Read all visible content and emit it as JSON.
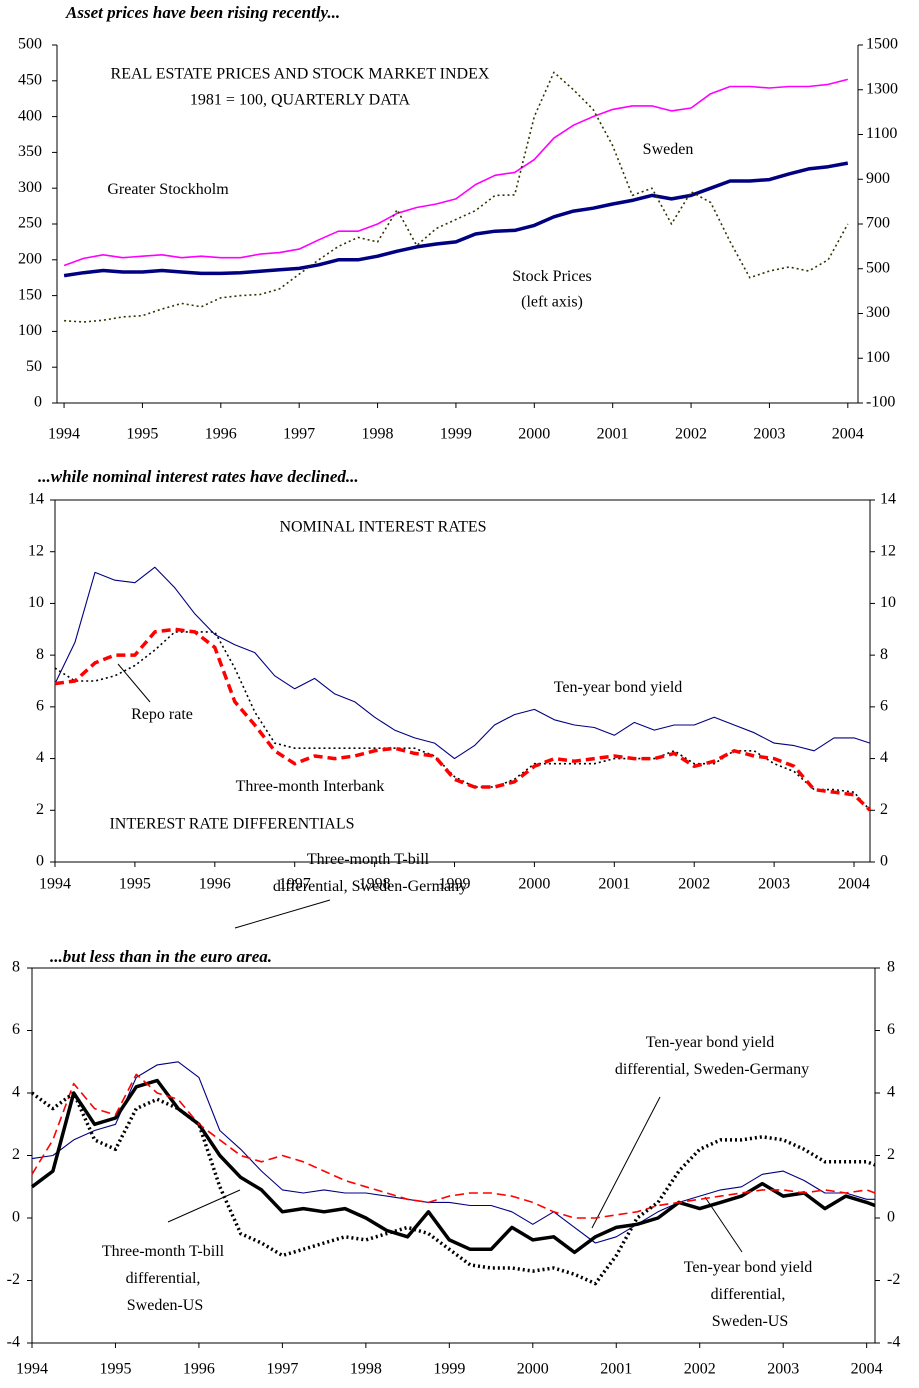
{
  "chart_data": [
    {
      "type": "line",
      "heading": "Asset prices have been rising recently...",
      "title": "REAL ESTATE PRICES AND STOCK MARKET INDEX",
      "subtitle": "1981 = 100, QUARTERLY DATA",
      "annotations": [
        "(left axis)"
      ],
      "x": [
        1994,
        1994.25,
        1994.5,
        1994.75,
        1995,
        1995.25,
        1995.5,
        1995.75,
        1996,
        1996.25,
        1996.5,
        1996.75,
        1997,
        1997.25,
        1997.5,
        1997.75,
        1998,
        1998.25,
        1998.5,
        1998.75,
        1999,
        1999.25,
        1999.5,
        1999.75,
        2000,
        2000.25,
        2000.5,
        2000.75,
        2001,
        2001.25,
        2001.5,
        2001.75,
        2002,
        2002.25,
        2002.5,
        2002.75,
        2003,
        2003.25,
        2003.5,
        2003.75,
        2004
      ],
      "xlim": [
        1993.91,
        2004.13
      ],
      "xticks": [
        1994,
        1995,
        1996,
        1997,
        1998,
        1999,
        2000,
        2001,
        2002,
        2003,
        2004
      ],
      "ylim": [
        0,
        500
      ],
      "yticks": [
        0,
        50,
        100,
        150,
        200,
        250,
        300,
        350,
        400,
        450,
        500
      ],
      "y2lim": [
        -100,
        1500
      ],
      "y2ticks": [
        -100,
        100,
        300,
        500,
        700,
        900,
        1100,
        1300,
        1500
      ],
      "series": [
        {
          "name": "Greater Stockholm",
          "color": "#000080",
          "line_style": "solid",
          "weight": "thick",
          "values": [
            178,
            182,
            185,
            183,
            183,
            185,
            183,
            181,
            181,
            182,
            184,
            186,
            188,
            193,
            200,
            200,
            205,
            212,
            218,
            222,
            225,
            236,
            240,
            241,
            248,
            260,
            268,
            272,
            278,
            283,
            290,
            285,
            290,
            300,
            310,
            310,
            312,
            320,
            327,
            330,
            335
          ]
        },
        {
          "name": "Sweden",
          "color": "#ff00ff",
          "line_style": "solid",
          "weight": "normal",
          "values": [
            192,
            202,
            207,
            203,
            205,
            207,
            203,
            205,
            203,
            203,
            208,
            210,
            215,
            228,
            240,
            240,
            250,
            265,
            273,
            278,
            285,
            305,
            318,
            322,
            340,
            370,
            388,
            400,
            410,
            415,
            415,
            408,
            412,
            432,
            442,
            442,
            440,
            442,
            442,
            445,
            452
          ]
        },
        {
          "name": "Stock Prices",
          "color": "#333300",
          "line_style": "dotted",
          "weight": "normal",
          "axis": "y2",
          "values": [
            268,
            262,
            270,
            285,
            290,
            320,
            345,
            330,
            370,
            380,
            385,
            410,
            476,
            540,
            600,
            640,
            620,
            764,
            604,
            680,
            720,
            760,
            828,
            830,
            1180,
            1378,
            1300,
            1212,
            1050,
            828,
            860,
            700,
            844,
            796,
            620,
            460,
            490,
            508,
            490,
            540,
            700
          ]
        }
      ]
    },
    {
      "type": "line",
      "heading": "...while nominal interest rates have declined...",
      "title": "NOMINAL INTEREST RATES",
      "x": [
        1994,
        1994.25,
        1994.5,
        1994.75,
        1995,
        1995.25,
        1995.5,
        1995.75,
        1996,
        1996.25,
        1996.5,
        1996.75,
        1997,
        1997.25,
        1997.5,
        1997.75,
        1998,
        1998.25,
        1998.5,
        1998.75,
        1999,
        1999.25,
        1999.5,
        1999.75,
        2000,
        2000.25,
        2000.5,
        2000.75,
        2001,
        2001.25,
        2001.5,
        2001.75,
        2002,
        2002.25,
        2002.5,
        2002.75,
        2003,
        2003.25,
        2003.5,
        2003.75,
        2004,
        2004.2
      ],
      "xlim": [
        1994,
        2004.2
      ],
      "xticks": [
        1994,
        1995,
        1996,
        1997,
        1998,
        1999,
        2000,
        2001,
        2002,
        2003,
        2004
      ],
      "ylim": [
        0,
        14
      ],
      "yticks": [
        0,
        2,
        4,
        6,
        8,
        10,
        12,
        14
      ],
      "y2lim": [
        0,
        14
      ],
      "y2ticks": [
        0,
        2,
        4,
        6,
        8,
        10,
        12,
        14
      ],
      "series": [
        {
          "name": "Ten-year bond yield",
          "color": "#000080",
          "line_style": "solid",
          "weight": "thin",
          "values": [
            6.9,
            8.5,
            11.2,
            10.9,
            10.8,
            11.4,
            10.6,
            9.6,
            8.8,
            8.4,
            8.1,
            7.2,
            6.7,
            7.1,
            6.5,
            6.2,
            5.6,
            5.1,
            4.8,
            4.6,
            4.0,
            4.5,
            5.3,
            5.7,
            5.9,
            5.5,
            5.3,
            5.2,
            4.9,
            5.4,
            5.1,
            5.3,
            5.3,
            5.6,
            5.3,
            5.0,
            4.6,
            4.5,
            4.3,
            4.8,
            4.8,
            4.6
          ]
        },
        {
          "name": "Repo rate",
          "color": "#000000",
          "line_style": "dotted",
          "weight": "normal",
          "values": [
            7.5,
            7.0,
            7.0,
            7.2,
            7.6,
            8.2,
            8.9,
            8.9,
            8.9,
            7.5,
            5.8,
            4.6,
            4.4,
            4.4,
            4.4,
            4.4,
            4.4,
            4.4,
            4.4,
            4.1,
            3.3,
            2.9,
            2.9,
            3.2,
            3.8,
            3.8,
            3.8,
            3.8,
            4.0,
            4.0,
            4.0,
            4.3,
            3.8,
            3.8,
            4.3,
            4.3,
            3.8,
            3.5,
            2.8,
            2.8,
            2.7,
            2.0
          ]
        },
        {
          "name": "Three-month Interbank",
          "color": "#ff0000",
          "line_style": "dashed",
          "weight": "thick",
          "values": [
            6.9,
            7.0,
            7.7,
            8.0,
            8.0,
            8.9,
            9.0,
            8.9,
            8.3,
            6.2,
            5.3,
            4.3,
            3.8,
            4.1,
            4.0,
            4.1,
            4.3,
            4.4,
            4.2,
            4.1,
            3.2,
            2.9,
            2.9,
            3.1,
            3.7,
            4.0,
            3.9,
            4.0,
            4.1,
            4.0,
            4.0,
            4.2,
            3.7,
            3.9,
            4.3,
            4.1,
            4.0,
            3.7,
            2.8,
            2.7,
            2.6,
            2.0
          ]
        }
      ]
    },
    {
      "type": "line",
      "heading": "...but less than in the euro area.",
      "title": "INTEREST RATE DIFFERENTIALS",
      "x": [
        1994,
        1994.25,
        1994.5,
        1994.75,
        1995,
        1995.25,
        1995.5,
        1995.75,
        1996,
        1996.25,
        1996.5,
        1996.75,
        1997,
        1997.25,
        1997.5,
        1997.75,
        1998,
        1998.25,
        1998.5,
        1998.75,
        1999,
        1999.25,
        1999.5,
        1999.75,
        2000,
        2000.25,
        2000.5,
        2000.75,
        2001,
        2001.25,
        2001.5,
        2001.75,
        2002,
        2002.25,
        2002.5,
        2002.75,
        2003,
        2003.25,
        2003.5,
        2003.75,
        2004,
        2004.1
      ],
      "xlim": [
        1994,
        2004.1
      ],
      "xticks": [
        1994,
        1995,
        1996,
        1997,
        1998,
        1999,
        2000,
        2001,
        2002,
        2003,
        2004
      ],
      "ylim": [
        -4,
        8
      ],
      "yticks": [
        -4,
        -2,
        0,
        2,
        4,
        6,
        8
      ],
      "y2lim": [
        -4,
        8
      ],
      "y2ticks": [
        -4,
        -2,
        0,
        2,
        4,
        6,
        8
      ],
      "series": [
        {
          "name": "Three-month T-bill differential, Sweden-Germany",
          "color": "#000080",
          "line_style": "solid",
          "weight": "thin",
          "values": [
            1.9,
            2.0,
            2.5,
            2.8,
            3.0,
            4.5,
            4.9,
            5.0,
            4.5,
            2.8,
            2.2,
            1.5,
            0.9,
            0.8,
            0.9,
            0.8,
            0.8,
            0.7,
            0.6,
            0.5,
            0.5,
            0.4,
            0.4,
            0.2,
            -0.2,
            0.2,
            -0.3,
            -0.8,
            -0.6,
            -0.2,
            0.2,
            0.5,
            0.7,
            0.9,
            1.0,
            1.4,
            1.5,
            1.2,
            0.8,
            0.8,
            0.6,
            0.6
          ]
        },
        {
          "name": "Three-month T-bill differential, Sweden-US",
          "color": "#000000",
          "line_style": "solid",
          "weight": "thick",
          "values": [
            1.0,
            1.5,
            4.0,
            3.0,
            3.2,
            4.2,
            4.4,
            3.5,
            3.0,
            2.0,
            1.3,
            0.9,
            0.2,
            0.3,
            0.2,
            0.3,
            0.0,
            -0.4,
            -0.6,
            0.2,
            -0.7,
            -1.0,
            -1.0,
            -0.3,
            -0.7,
            -0.6,
            -1.1,
            -0.6,
            -0.3,
            -0.2,
            0.0,
            0.5,
            0.3,
            0.5,
            0.7,
            1.1,
            0.7,
            0.8,
            0.3,
            0.7,
            0.5,
            0.4
          ]
        },
        {
          "name": "Ten-year bond yield differential, Sweden-Germany",
          "color": "#ff0000",
          "line_style": "dashed",
          "weight": "normal",
          "values": [
            1.4,
            2.5,
            4.3,
            3.5,
            3.3,
            4.6,
            4.0,
            3.8,
            3.0,
            2.5,
            2.0,
            1.8,
            2.0,
            1.8,
            1.5,
            1.2,
            1.0,
            0.8,
            0.6,
            0.5,
            0.7,
            0.8,
            0.8,
            0.7,
            0.5,
            0.2,
            0.0,
            0.0,
            0.1,
            0.2,
            0.4,
            0.5,
            0.6,
            0.7,
            0.8,
            0.9,
            0.9,
            0.8,
            0.9,
            0.8,
            0.9,
            0.8
          ]
        },
        {
          "name": "Ten-year bond yield differential, Sweden-US",
          "color": "#000000",
          "line_style": "dotted",
          "weight": "thick",
          "values": [
            4.0,
            3.5,
            4.0,
            2.5,
            2.2,
            3.5,
            3.8,
            3.5,
            3.0,
            1.0,
            -0.5,
            -0.8,
            -1.2,
            -1.0,
            -0.8,
            -0.6,
            -0.7,
            -0.5,
            -0.3,
            -0.5,
            -1.0,
            -1.5,
            -1.6,
            -1.6,
            -1.7,
            -1.6,
            -1.8,
            -2.1,
            -1.2,
            0.0,
            0.5,
            1.5,
            2.2,
            2.5,
            2.5,
            2.6,
            2.5,
            2.2,
            1.8,
            1.8,
            1.8,
            1.7
          ]
        }
      ]
    }
  ]
}
